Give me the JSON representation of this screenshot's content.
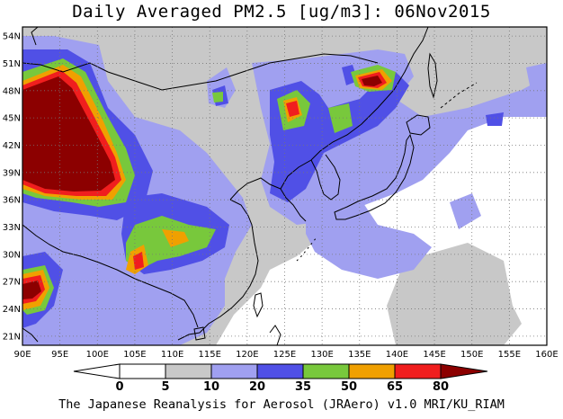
{
  "title": "Daily Averaged PM2.5 [ug/m3]: 06Nov2015",
  "footer": "The Japanese Reanalysis for Aerosol (JRAero) v1.0 MRI/KU_RIAM",
  "map": {
    "lon_range": [
      90,
      160
    ],
    "lat_range": [
      20,
      55
    ],
    "lon_ticks": [
      "90E",
      "95E",
      "100E",
      "105E",
      "110E",
      "115E",
      "120E",
      "125E",
      "130E",
      "135E",
      "140E",
      "145E",
      "150E",
      "155E",
      "160E"
    ],
    "lat_ticks": [
      "21N",
      "24N",
      "27N",
      "30N",
      "33N",
      "36N",
      "39N",
      "42N",
      "45N",
      "48N",
      "51N",
      "54N"
    ]
  },
  "colorbar": {
    "levels": [
      "0",
      "5",
      "10",
      "20",
      "35",
      "50",
      "65",
      "80"
    ],
    "colors": [
      "#ffffff",
      "#c8c8c8",
      "#a0a0f0",
      "#5050e6",
      "#78c83c",
      "#f0a000",
      "#f01e1e",
      "#8c0000"
    ]
  }
}
